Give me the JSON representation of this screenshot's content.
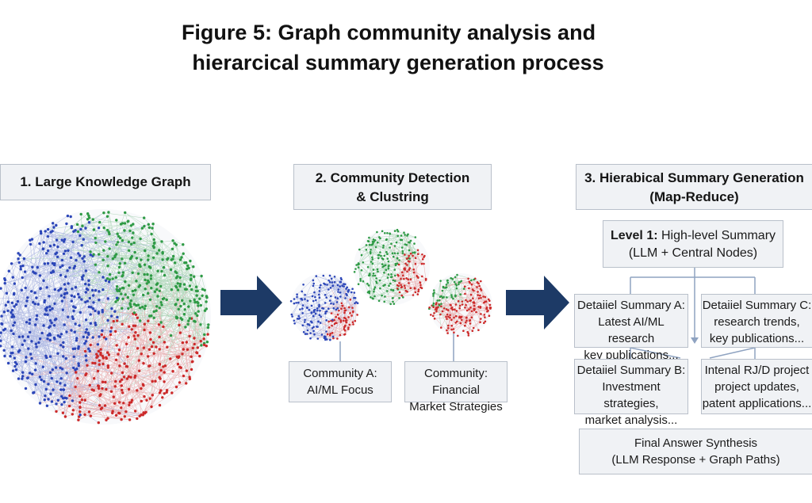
{
  "figure": {
    "title_line1": "Figure 5: Graph community analysis and",
    "title_line2": "hierarcical summary generation process"
  },
  "steps": {
    "step1": "1. Large Knowledge Graph",
    "step2_line1": "2. Community Detection",
    "step2_line2": "& Clustring",
    "step3_line1": "3. Hierabical Summary Generation",
    "step3_line2": "(Map-Reduce)"
  },
  "communities": {
    "a_line1": "Community A:",
    "a_line2": "AI/ML Focus",
    "b_line1": "Community: Financial",
    "b_line2": "Market Strategies"
  },
  "summaries": {
    "level1_bold": "Level 1:",
    "level1_rest": " High-level Summary",
    "level1_line2": "(LLM + Central Nodes)",
    "a_line1": "Detaiiel Summary A:",
    "a_line2": "Latest AI/ML research",
    "a_line3": "key publications...",
    "c_line1": "Detaiiel Summary C:",
    "c_line2": "research trends,",
    "c_line3": "key publications...",
    "b_line1": "Detaiiel Summary B:",
    "b_line2": "Investment strategies,",
    "b_line3": "market analysis...",
    "d_line1": "Intenal RJ/D project",
    "d_line2": "project updates,",
    "d_line3": "patent applications..."
  },
  "final": {
    "line1": "Final Answer Synthesis",
    "line2": "(LLM Response + Graph Paths)"
  },
  "colors": {
    "blue": "#2c46b8",
    "green": "#2e9a45",
    "red": "#cc2a2a",
    "arrow": "#1d3a66",
    "connector": "#8fa3c1"
  }
}
